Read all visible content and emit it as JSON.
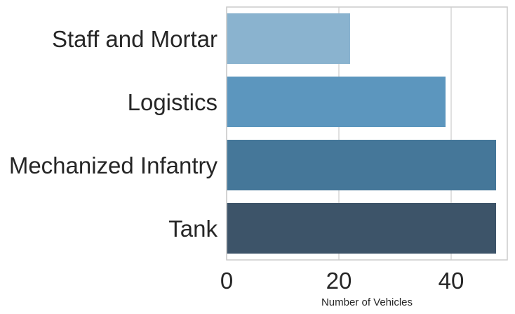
{
  "chart_data": {
    "type": "bar",
    "orientation": "horizontal",
    "categories": [
      "Staff and Mortar",
      "Logistics",
      "Mechanized Infantry",
      "Tank"
    ],
    "values": [
      22,
      39,
      48,
      48
    ],
    "colors": [
      "#8ab3cf",
      "#5c96be",
      "#457799",
      "#3d5469"
    ],
    "xlabel": "Number of Vehicles",
    "ylabel": "",
    "xlim": [
      0,
      50
    ],
    "xticks": [
      0,
      20,
      40
    ],
    "grid": "vertical",
    "legend": "none"
  }
}
